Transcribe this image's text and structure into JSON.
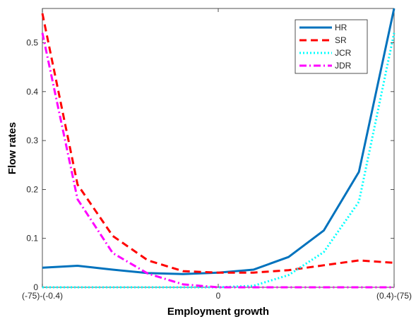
{
  "chart_data": {
    "type": "line",
    "x_label": "Employment growth",
    "y_label": "Flow rates",
    "categories": [
      "(-75)-(-0.4)",
      null,
      null,
      null,
      null,
      "0",
      null,
      null,
      null,
      null,
      "(0.4)-(75)"
    ],
    "ylim": [
      0,
      0.57
    ],
    "yticks": [
      0,
      0.1,
      0.2,
      0.3,
      0.4,
      0.5
    ],
    "legend": "upper right",
    "series": [
      {
        "name": "HR",
        "color": "#0072bd",
        "style": "solid",
        "values": [
          0.04,
          0.044,
          0.036,
          0.029,
          0.027,
          0.03,
          0.036,
          0.062,
          0.116,
          0.236,
          0.57
        ]
      },
      {
        "name": "SR",
        "color": "#ff0000",
        "style": "dashed",
        "values": [
          0.56,
          0.21,
          0.105,
          0.055,
          0.033,
          0.03,
          0.03,
          0.035,
          0.045,
          0.055,
          0.05
        ]
      },
      {
        "name": "JCR",
        "color": "#00ffff",
        "style": "dotted",
        "values": [
          0,
          0,
          0,
          0,
          0,
          0,
          0.003,
          0.025,
          0.072,
          0.175,
          0.52
        ]
      },
      {
        "name": "JDR",
        "color": "#ff00ff",
        "style": "dashdot",
        "values": [
          0.52,
          0.18,
          0.07,
          0.028,
          0.006,
          0,
          0,
          0,
          0,
          0,
          0
        ]
      }
    ]
  }
}
